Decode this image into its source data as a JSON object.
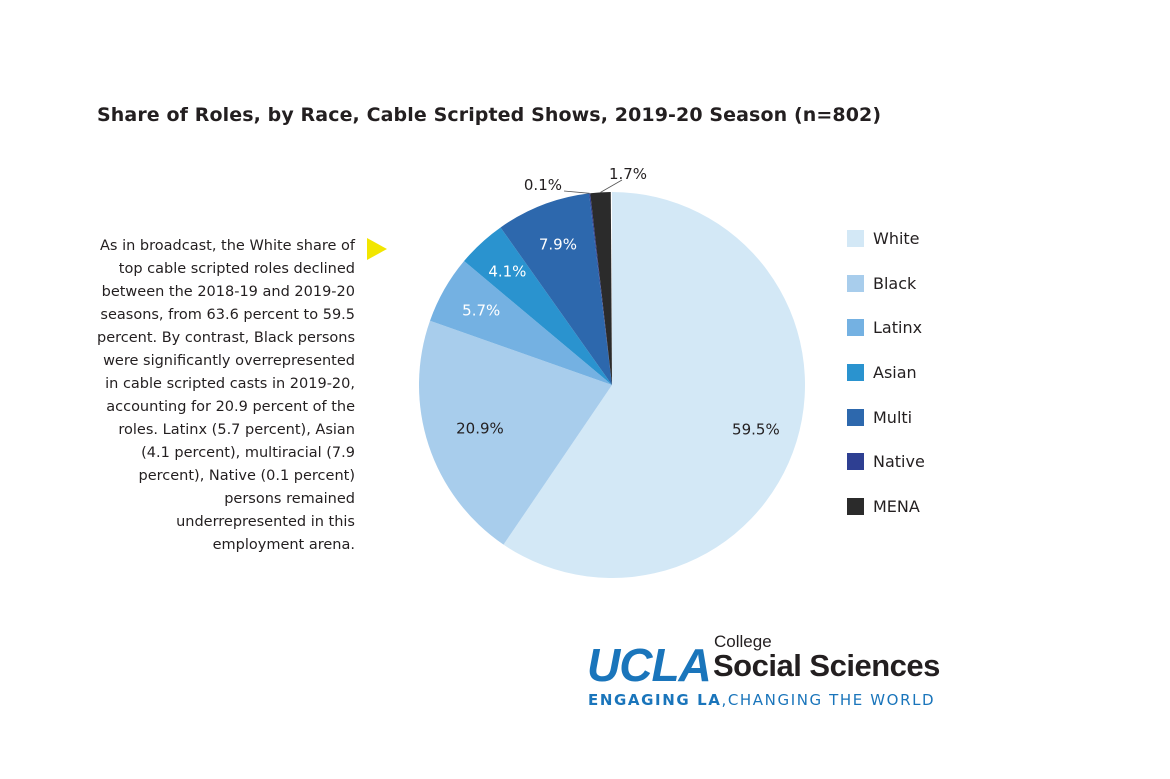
{
  "chart_data": {
    "type": "pie",
    "title": "Share of Roles, by Race, Cable Scripted Shows, 2019-20 Season (n=802)",
    "categories": [
      "White",
      "Black",
      "Latinx",
      "Asian",
      "Multi",
      "Native",
      "MENA"
    ],
    "values": [
      59.5,
      20.9,
      5.7,
      4.1,
      7.9,
      0.1,
      1.7
    ],
    "data_labels": [
      "59.5%",
      "20.9%",
      "5.7%",
      "4.1%",
      "7.9%",
      "0.1%",
      "1.7%"
    ],
    "colors": [
      "#d3e8f6",
      "#a8cdec",
      "#74b1e2",
      "#2a93cf",
      "#2d68ad",
      "#2e3f92",
      "#2b2b2b"
    ],
    "label_colors": [
      "#231f20",
      "#231f20",
      "#ffffff",
      "#ffffff",
      "#ffffff",
      "#231f20",
      "#231f20"
    ],
    "start": "top",
    "direction": "clockwise",
    "legend_position": "right"
  },
  "description": "As in broadcast, the White share of top cable scripted roles declined between the 2018-19 and 2019-20 seasons, from 63.6 percent to 59.5 percent. By contrast, Black persons were significantly overrepresented in cable scripted casts in 2019-20, accounting for 20.9 percent of the roles. Latinx (5.7 percent), Asian (4.1 percent), multiracial (7.9 percent), Native (0.1 percent) persons remained underrepresented in this employment arena.",
  "logo": {
    "ucla": "UCLA",
    "college": "College",
    "name": "Social Sciences",
    "tagline_bold": "ENGAGING LA",
    "tagline_rest": ",CHANGING THE WORLD"
  }
}
